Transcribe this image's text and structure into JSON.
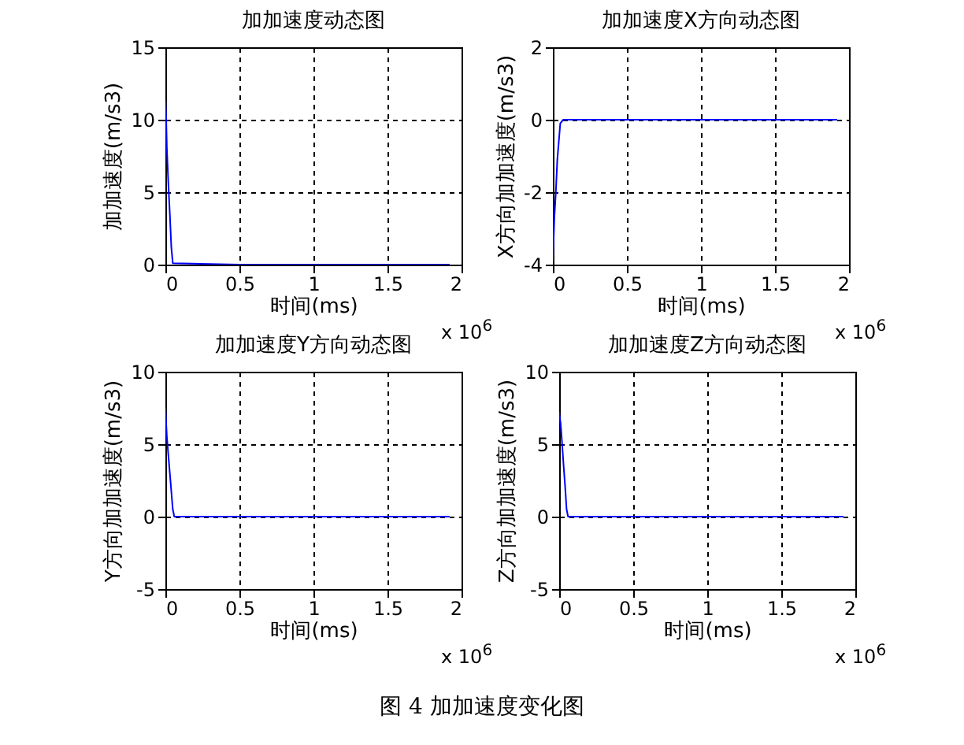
{
  "chart_data": [
    {
      "type": "line",
      "title": "加加速度动态图",
      "xlabel": "时间(ms)",
      "ylabel": "加加速度(m/s3)",
      "annotations": [
        "x 10$^{6}$"
      ],
      "x": [
        0,
        0.005,
        0.01,
        0.02,
        0.03,
        0.04,
        0.05,
        0.5,
        1,
        1.5,
        1.92
      ],
      "series": [
        {
          "color": "#0000ff",
          "values": [
            11.3,
            10.2,
            8,
            5.6,
            3.5,
            1.2,
            0.1,
            0,
            0,
            0,
            0
          ]
        }
      ],
      "xlim": [
        0,
        2
      ],
      "xticks": [
        0,
        0.5,
        1,
        1.5,
        2
      ],
      "ylim": [
        0,
        15
      ],
      "yticks": [
        0,
        5,
        10,
        15
      ],
      "grid": true,
      "line_style": "solid"
    },
    {
      "type": "line",
      "title": "加加速度X方向动态图",
      "xlabel": "时间(ms)",
      "ylabel": "X方向加加速度(m/s3)",
      "annotations": [
        "x 10$^{6}$"
      ],
      "x": [
        0,
        0.01,
        0.02,
        0.03,
        0.05,
        0.07,
        1.92
      ],
      "series": [
        {
          "color": "#0000ff",
          "values": [
            -3.9,
            -2.7,
            -2,
            -1.1,
            -0.1,
            0,
            0
          ]
        }
      ],
      "xlim": [
        0,
        2
      ],
      "xticks": [
        0,
        0.5,
        1,
        1.5,
        2
      ],
      "ylim": [
        -4,
        2
      ],
      "yticks": [
        -4,
        -2,
        0,
        2
      ],
      "grid": true,
      "line_style": "solid"
    },
    {
      "type": "line",
      "title": "加加速度Y方向动态图",
      "xlabel": "时间(ms)",
      "ylabel": "Y方向加加速度(m/s3)",
      "annotations": [
        "x 10$^{6}$"
      ],
      "x": [
        0,
        0.01,
        0.03,
        0.05,
        0.06,
        1.92
      ],
      "series": [
        {
          "color": "#0000ff",
          "values": [
            7.5,
            5.5,
            3,
            0.5,
            0,
            0
          ]
        }
      ],
      "xlim": [
        0,
        2
      ],
      "xticks": [
        0,
        0.5,
        1,
        1.5,
        2
      ],
      "ylim": [
        -5,
        10
      ],
      "yticks": [
        -5,
        0,
        5,
        10
      ],
      "grid": true,
      "line_style": "solid"
    },
    {
      "type": "line",
      "title": "加加速度Z方向动态图",
      "xlabel": "时间(ms)",
      "ylabel": "Z方向加加速度(m/s3)",
      "annotations": [
        "x 10$^{6}$",
        "图 4  加加速度变化图"
      ],
      "x": [
        0,
        0.01,
        0.02,
        0.03,
        0.04,
        0.05,
        0.06,
        1,
        1.92
      ],
      "series": [
        {
          "color": "#0000ff",
          "values": [
            7.2,
            6.4,
            5,
            3.5,
            2.1,
            0.5,
            0,
            0,
            0
          ]
        }
      ],
      "xlim": [
        0,
        2
      ],
      "xticks": [
        0,
        0.5,
        1,
        1.5,
        2
      ],
      "ylim": [
        -5,
        10
      ],
      "yticks": [
        -5,
        0,
        5,
        10
      ],
      "grid": true,
      "line_style": "solid"
    }
  ]
}
